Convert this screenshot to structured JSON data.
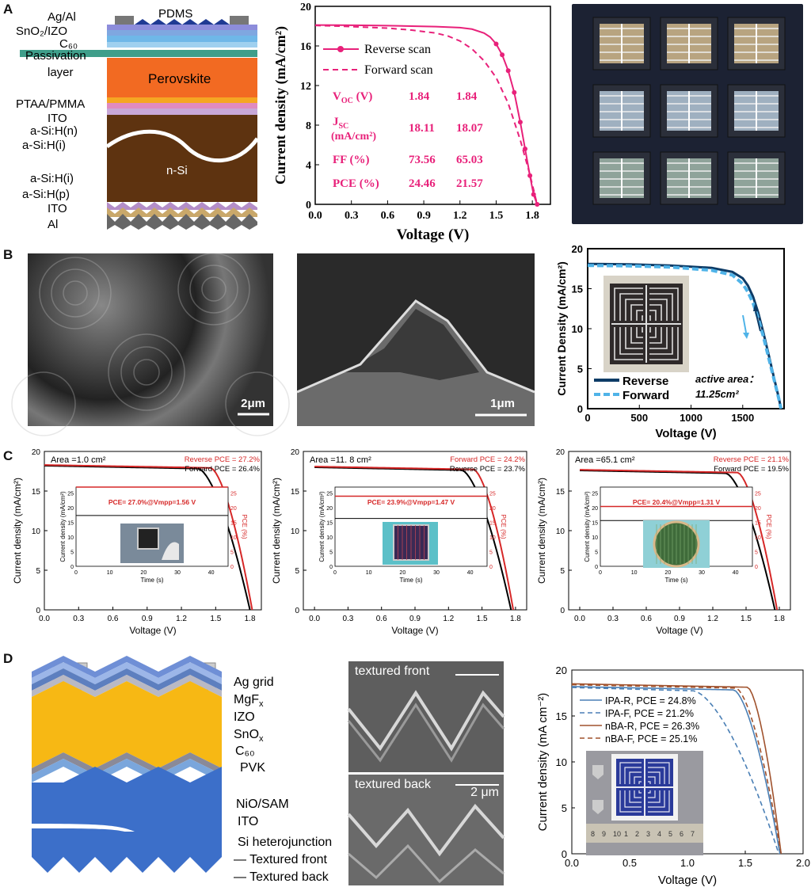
{
  "figure": {
    "panel_labels": [
      "A",
      "B",
      "C",
      "D"
    ],
    "colors": {
      "pink": "#e8217a",
      "darkblue": "#0d3b66",
      "lightblue": "#4fb3e8",
      "red": "#d62828",
      "black": "#000000",
      "brown": "#a0522d",
      "steel": "#4a7fb5"
    }
  },
  "panelA": {
    "stack_labels": [
      "Ag/Al",
      "PDMS",
      "SnO₂/IZO",
      "C₆₀",
      "Passivation",
      "layer",
      "Perovskite",
      "PTAA/PMMA",
      "ITO",
      "a-Si:H(n)",
      "a-Si:H(i)",
      "n-Si",
      "a-Si:H(i)",
      "a-Si:H(p)",
      "ITO",
      "Al"
    ],
    "chart_data": {
      "type": "line",
      "xlabel": "Voltage (V)",
      "ylabel": "Current density (mA/cm²)",
      "xlim": [
        0,
        1.95
      ],
      "ylim": [
        0,
        20
      ],
      "xticks": [
        "0.0",
        "0.3",
        "0.6",
        "0.9",
        "1.2",
        "1.5",
        "1.8"
      ],
      "yticks": [
        "0",
        "4",
        "8",
        "12",
        "16",
        "20"
      ],
      "legend": [
        "Reverse scan",
        "Forward scan"
      ],
      "series": [
        {
          "name": "Reverse scan",
          "style": "solid-markers",
          "color": "#e8217a",
          "x": [
            0,
            0.2,
            0.4,
            0.6,
            0.8,
            1.0,
            1.2,
            1.3,
            1.4,
            1.45,
            1.5,
            1.55,
            1.6,
            1.65,
            1.7,
            1.74,
            1.78,
            1.81,
            1.84
          ],
          "y": [
            18.11,
            18.1,
            18.08,
            18.05,
            18.0,
            17.95,
            17.85,
            17.7,
            17.3,
            16.9,
            16.2,
            15.1,
            13.5,
            11.3,
            8.3,
            5.6,
            2.9,
            1.0,
            0
          ]
        },
        {
          "name": "Forward scan",
          "style": "dashed",
          "color": "#e8217a",
          "x": [
            0,
            0.2,
            0.4,
            0.6,
            0.8,
            1.0,
            1.1,
            1.2,
            1.3,
            1.4,
            1.5,
            1.6,
            1.7,
            1.78,
            1.84
          ],
          "y": [
            18.07,
            18.0,
            17.9,
            17.8,
            17.6,
            17.3,
            17.0,
            16.5,
            15.7,
            14.5,
            12.8,
            10.2,
            6.5,
            3.0,
            0
          ]
        }
      ],
      "table": {
        "rows": [
          {
            "label": "V",
            "sub": "OC",
            "unit": " (V)",
            "rev": "1.84",
            "fwd": "1.84"
          },
          {
            "label": "J",
            "sub": "SC",
            "unit": "",
            "unit2": "(mA/cm²)",
            "rev": "18.11",
            "fwd": "18.07"
          },
          {
            "label": "FF (%)",
            "sub": "",
            "unit": "",
            "rev": "73.56",
            "fwd": "65.03"
          },
          {
            "label": "PCE (%)",
            "sub": "",
            "unit": "",
            "rev": "24.46",
            "fwd": "21.57"
          }
        ]
      }
    }
  },
  "panelB": {
    "scale_left": "2μm",
    "scale_mid": "1μm",
    "chart_data": {
      "type": "line",
      "xlabel": "Voltage (V)",
      "ylabel": "Current Density (mA/cm²)",
      "xlim": [
        0,
        1900
      ],
      "ylim": [
        0,
        20
      ],
      "xticks": [
        "0",
        "500",
        "1000",
        "1500"
      ],
      "yticks": [
        "0",
        "5",
        "10",
        "15",
        "20"
      ],
      "legend": [
        "Reverse",
        "Forward"
      ],
      "annotation": "active area：",
      "annotation2": "11.25cm²",
      "series": [
        {
          "name": "Reverse",
          "color": "#0d3b66",
          "x": [
            0,
            400,
            800,
            1200,
            1400,
            1500,
            1550,
            1600,
            1650,
            1700,
            1750,
            1800,
            1850,
            1870
          ],
          "y": [
            18.1,
            18.05,
            17.9,
            17.6,
            17.1,
            16.3,
            15.4,
            14.0,
            12.0,
            9.5,
            6.8,
            4.0,
            1.3,
            0
          ]
        },
        {
          "name": "Forward",
          "color": "#4fb3e8",
          "x": [
            0,
            400,
            800,
            1200,
            1400,
            1500,
            1550,
            1600,
            1650,
            1700,
            1750,
            1800,
            1850,
            1870
          ],
          "y": [
            17.9,
            17.85,
            17.7,
            17.3,
            16.7,
            15.6,
            14.6,
            13.2,
            11.3,
            9.0,
            6.4,
            3.8,
            1.2,
            0
          ]
        }
      ]
    }
  },
  "panelC": {
    "charts": [
      {
        "area": "Area =1.0 cm²",
        "pce_red": "Reverse PCE = 27.2%",
        "pce_black": "Forward PCE = 26.4%",
        "inset_label": "PCE= 27.0%@Vmpp=1.56 V",
        "inset_pce": 27.0,
        "inset_j": 17.3,
        "xticks": [
          "0.0",
          "0.3",
          "0.6",
          "0.9",
          "1.2",
          "1.5",
          "1.8"
        ],
        "xlim": [
          0,
          1.9
        ],
        "voc": 1.82,
        "jsc": 18.2
      },
      {
        "area": "Area =11. 8 cm²",
        "pce_red": "Forward PCE = 24.2%",
        "pce_black": "Reverse PCE = 23.7%",
        "inset_label": "PCE= 23.9%@Vmpp=1.47 V",
        "inset_pce": 23.9,
        "inset_j": 16.3,
        "xticks": [
          "0.0",
          "0.3",
          "0.6",
          "0.9",
          "1.2",
          "1.5",
          "1.8"
        ],
        "xlim": [
          -0.1,
          1.9
        ],
        "voc": 1.78,
        "jsc": 18.0
      },
      {
        "area": "Area =65.1 cm²",
        "pce_red": "Reverse PCE = 21.1%",
        "pce_black": "Forward PCE = 19.5%",
        "inset_label": "PCE= 20.4%@Vmpp=1.31 V",
        "inset_pce": 20.4,
        "inset_j": 15.6,
        "xticks": [
          "0.0",
          "0.3",
          "0.6",
          "0.9",
          "1.2",
          "1.5",
          "1.8"
        ],
        "xlim": [
          -0.1,
          1.9
        ],
        "voc": 1.78,
        "jsc": 17.6
      }
    ],
    "chart_data": {
      "type": "line",
      "xlabel": "Voltage (V)",
      "ylabel": "Current density (mA/cm²)",
      "ylim": [
        0,
        20
      ],
      "yticks": [
        "0",
        "5",
        "10",
        "15",
        "20"
      ],
      "inset_xlabel": "Time (s)",
      "inset_ylabel": "Current density (mA/cm²)",
      "inset_y2label": "PCE (%)",
      "inset_xticks": [
        "0",
        "10",
        "20",
        "30",
        "40"
      ],
      "inset_yticks": [
        "0",
        "5",
        "10",
        "15",
        "20",
        "25"
      ]
    }
  },
  "panelD": {
    "stack_labels": [
      "Ag grid",
      "MgF",
      "x",
      "IZO",
      "SnO",
      "x",
      "C₆₀",
      "PVK",
      "NiO/SAM",
      "ITO",
      "Si heterojunction",
      "— Textured front",
      "— Textured back"
    ],
    "sem_top": "textured front",
    "sem_bottom": "textured back",
    "scale": "2 μm",
    "chart_data": {
      "type": "line",
      "xlabel": "Voltage (V)",
      "ylabel": "Current density (mA cm⁻²)",
      "xlim": [
        0,
        2.0
      ],
      "ylim": [
        0,
        20
      ],
      "xticks": [
        "0.0",
        "0.5",
        "1.0",
        "1.5",
        "2.0"
      ],
      "yticks": [
        "0",
        "5",
        "10",
        "15",
        "20"
      ],
      "series": [
        {
          "name": "IPA-R, PCE = 24.8%",
          "color": "#4a7fb5",
          "dash": false,
          "jsc": 18.2,
          "voc": 1.8,
          "knee": 1.4
        },
        {
          "name": "IPA-F, PCE = 21.2%",
          "color": "#4a7fb5",
          "dash": true,
          "jsc": 18.1,
          "voc": 1.79,
          "knee": 1.05
        },
        {
          "name": "nBA-R, PCE = 26.3%",
          "color": "#a0522d",
          "dash": false,
          "jsc": 18.5,
          "voc": 1.81,
          "knee": 1.52
        },
        {
          "name": "nBA-F, PCE = 25.1%",
          "color": "#a0522d",
          "dash": true,
          "jsc": 18.4,
          "voc": 1.81,
          "knee": 1.42
        }
      ],
      "ruler_digits": [
        "8",
        "9",
        "10",
        "1",
        "2",
        "3",
        "4",
        "5",
        "6",
        "7"
      ]
    }
  }
}
